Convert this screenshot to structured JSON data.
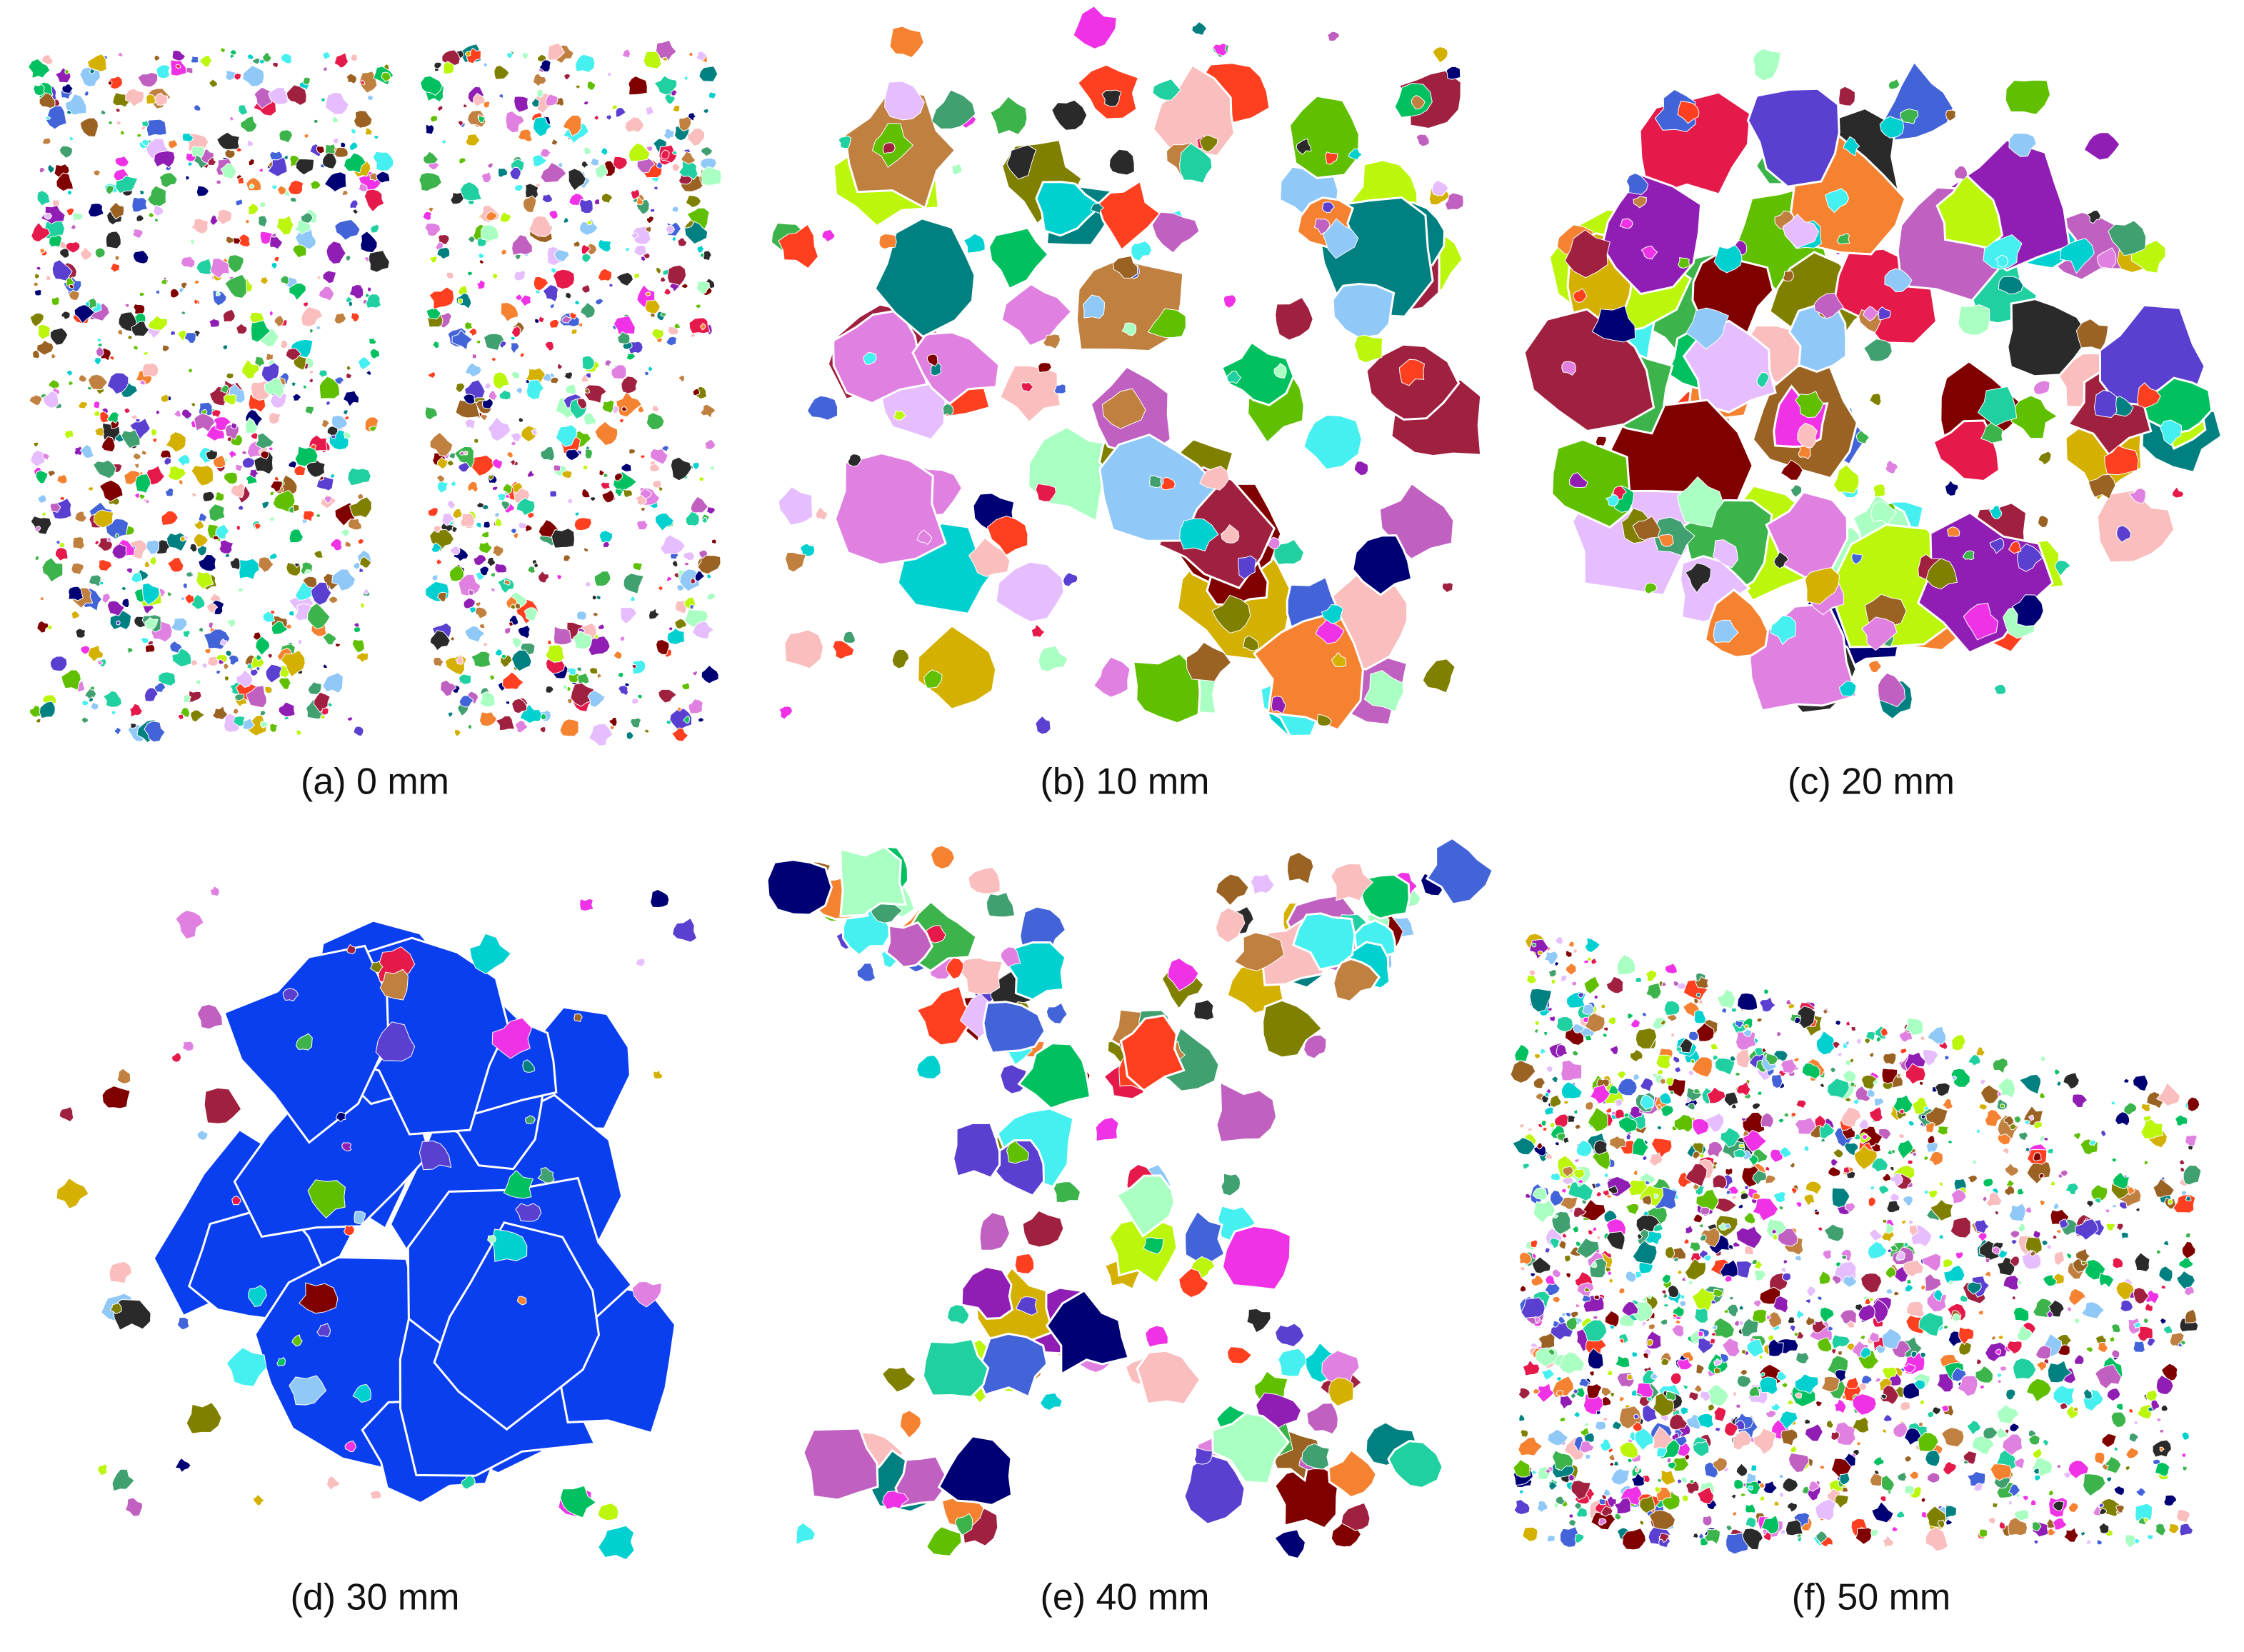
{
  "panels": [
    {
      "caption": "(a) 0 mm"
    },
    {
      "caption": "(b) 10 mm"
    },
    {
      "caption": "(c) 20 mm"
    },
    {
      "caption": "(d) 30 mm"
    },
    {
      "caption": "(e) 40 mm"
    },
    {
      "caption": "(f) 50 mm"
    }
  ]
}
